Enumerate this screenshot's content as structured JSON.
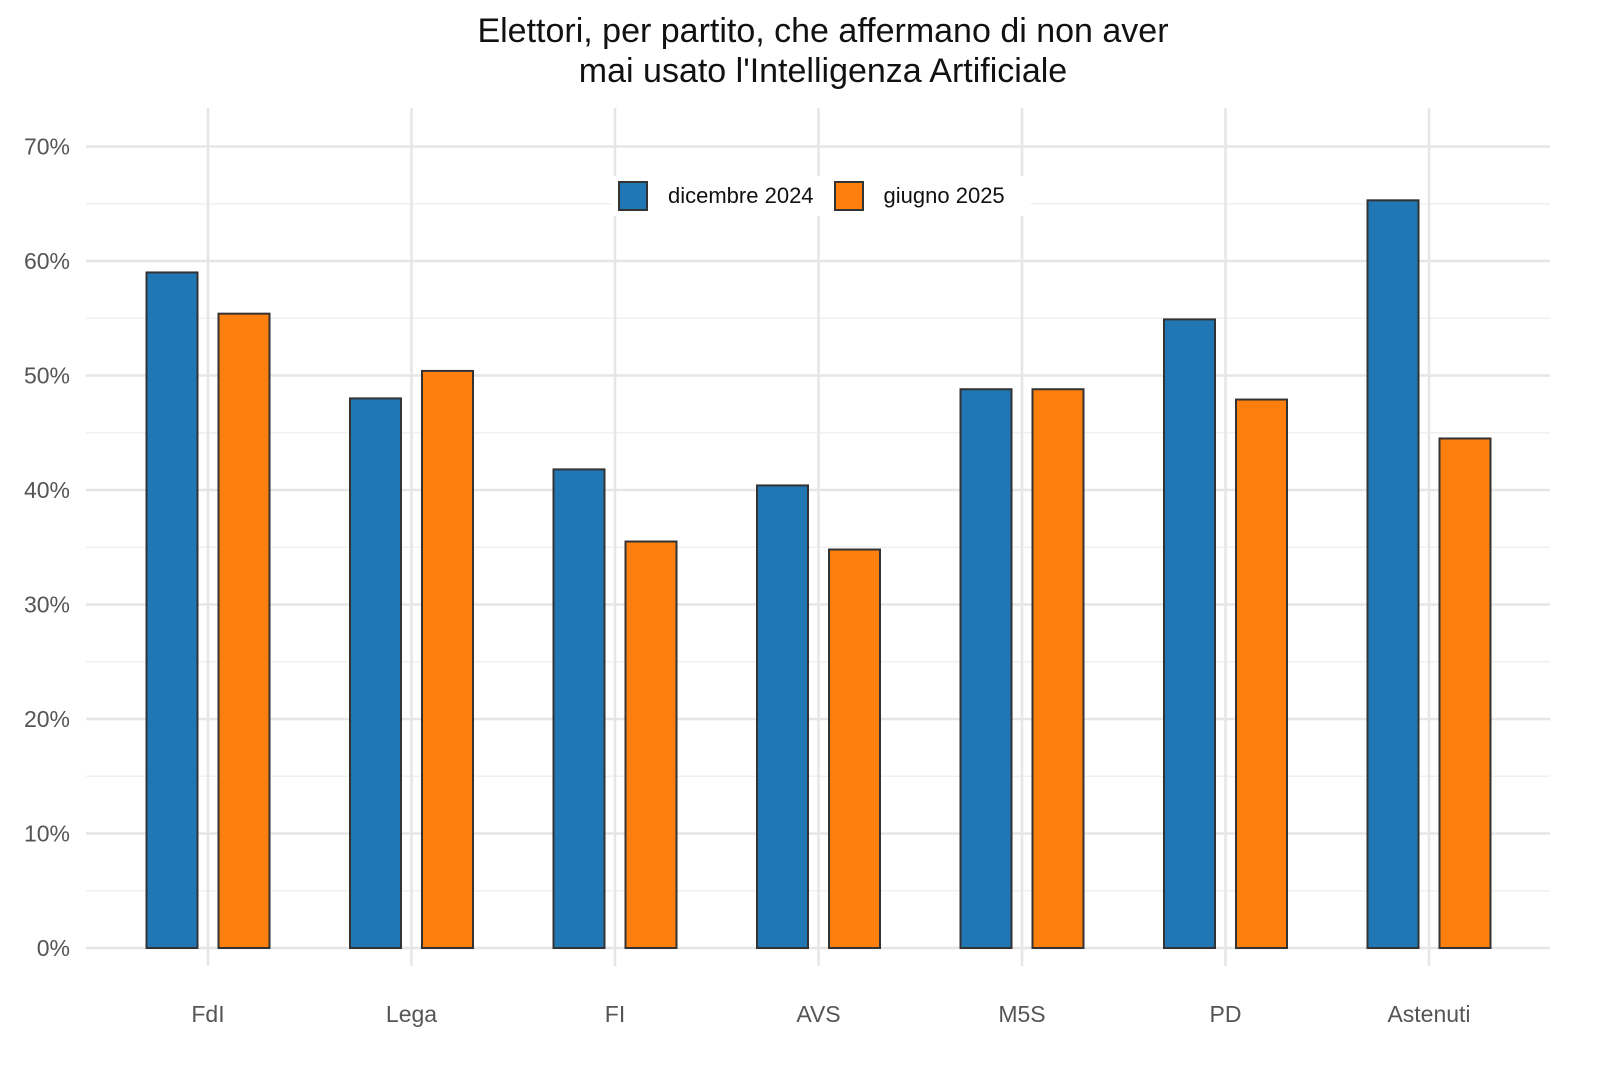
{
  "chart_data": {
    "type": "bar",
    "title": "Elettori, per partito, che affermano di non aver mai usato l'Intelligenza Artificiale",
    "title_lines": [
      "Elettori, per partito, che affermano di non aver",
      "mai usato l'Intelligenza Artificiale"
    ],
    "xlabel": "",
    "ylabel": "",
    "categories": [
      "FdI",
      "Lega",
      "FI",
      "AVS",
      "M5S",
      "PD",
      "Astenuti"
    ],
    "series": [
      {
        "name": "dicembre 2024",
        "color": "#2077b4",
        "values": [
          59,
          48,
          41.8,
          40.4,
          48.8,
          54.9,
          65.3
        ]
      },
      {
        "name": "giugno 2025",
        "color": "#fe7f0e",
        "values": [
          55.4,
          50.4,
          35.5,
          34.8,
          48.8,
          47.9,
          44.5
        ]
      }
    ],
    "ylim": [
      0,
      70
    ],
    "yticks": [
      0,
      10,
      20,
      30,
      40,
      50,
      60,
      70
    ],
    "ytick_labels": [
      "0%",
      "10%",
      "20%",
      "30%",
      "40%",
      "50%",
      "60%",
      "70%"
    ],
    "grid": true,
    "legend_position": "top-center"
  }
}
